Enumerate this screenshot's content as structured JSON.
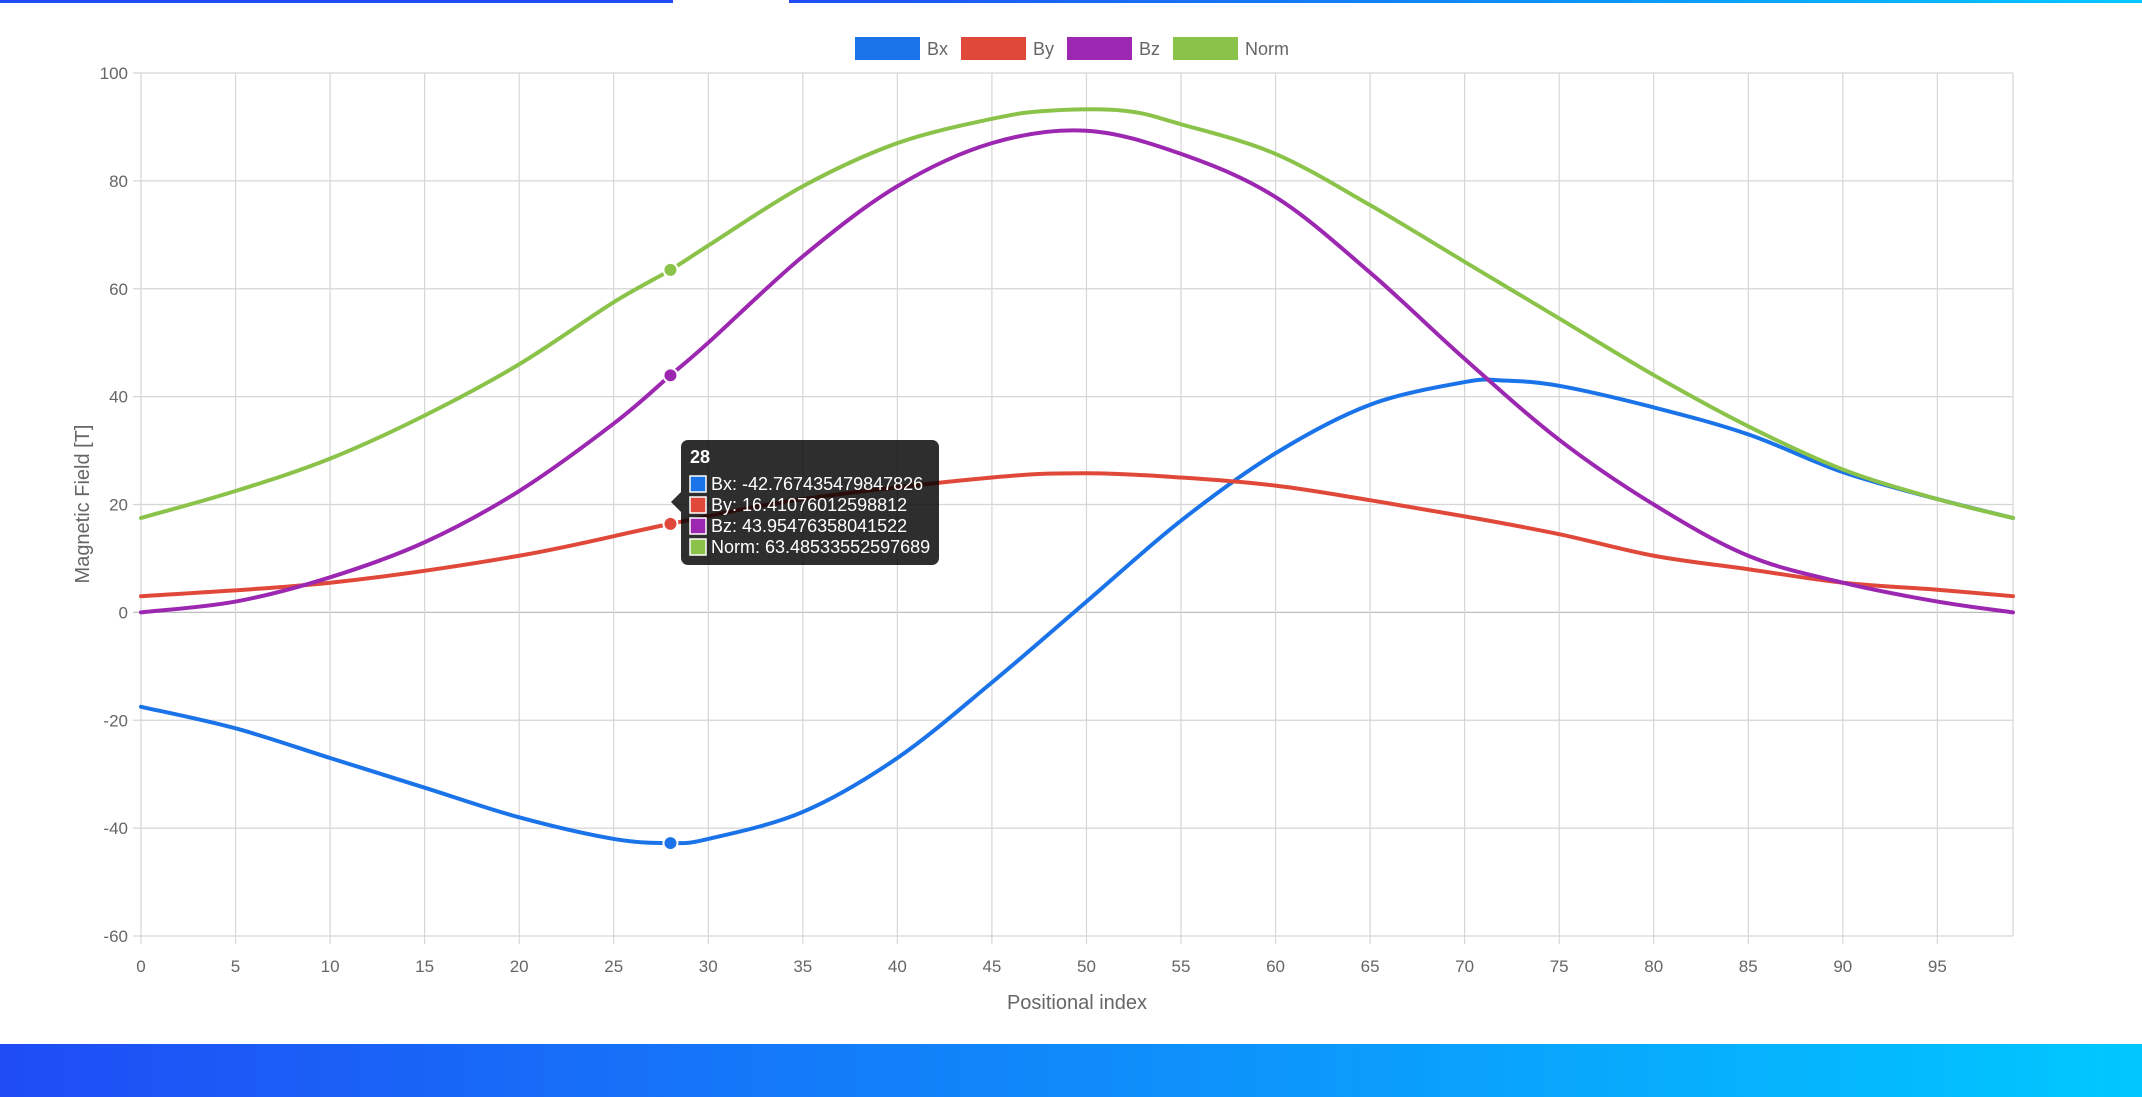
{
  "page": {
    "gradient_start": "#1f4cf5",
    "gradient_end": "#00c8ff"
  },
  "chart_data": {
    "type": "line",
    "xlabel": "Positional index",
    "ylabel": "Magnetic Field [T]",
    "xlim": [
      0,
      99
    ],
    "ylim": [
      -60,
      100
    ],
    "x_ticks": [
      0,
      5,
      10,
      15,
      20,
      25,
      30,
      35,
      40,
      45,
      50,
      55,
      60,
      65,
      70,
      75,
      80,
      85,
      90,
      95
    ],
    "y_ticks": [
      100,
      80,
      60,
      40,
      20,
      0,
      -20,
      -40,
      -60
    ],
    "grid": true,
    "legend_position": "top",
    "series": [
      {
        "name": "Bx",
        "color": "#1a73e8",
        "points": [
          [
            0,
            -17.5
          ],
          [
            5,
            -21.5
          ],
          [
            10,
            -27
          ],
          [
            15,
            -32.5
          ],
          [
            20,
            -38
          ],
          [
            25,
            -42
          ],
          [
            28,
            -42.77
          ],
          [
            30,
            -42
          ],
          [
            35,
            -37
          ],
          [
            40,
            -27
          ],
          [
            45,
            -13
          ],
          [
            50,
            2
          ],
          [
            55,
            17
          ],
          [
            60,
            29.5
          ],
          [
            65,
            38.5
          ],
          [
            70,
            42.7
          ],
          [
            72,
            43
          ],
          [
            75,
            42
          ],
          [
            80,
            38
          ],
          [
            85,
            33
          ],
          [
            90,
            26
          ],
          [
            95,
            21
          ],
          [
            99,
            17.5
          ]
        ]
      },
      {
        "name": "By",
        "color": "#e0483a",
        "points": [
          [
            0,
            3
          ],
          [
            10,
            5.5
          ],
          [
            20,
            10.5
          ],
          [
            28,
            16.41
          ],
          [
            35,
            21
          ],
          [
            45,
            25
          ],
          [
            50,
            25.8
          ],
          [
            55,
            25
          ],
          [
            60,
            23.5
          ],
          [
            65,
            20.8
          ],
          [
            70,
            17.8
          ],
          [
            75,
            14.5
          ],
          [
            80,
            10.5
          ],
          [
            85,
            8
          ],
          [
            90,
            5.5
          ],
          [
            95,
            4.2
          ],
          [
            99,
            3
          ]
        ]
      },
      {
        "name": "Bz",
        "color": "#9c27b0",
        "points": [
          [
            0,
            0
          ],
          [
            5,
            2
          ],
          [
            10,
            6.5
          ],
          [
            15,
            13
          ],
          [
            20,
            22.5
          ],
          [
            25,
            35
          ],
          [
            28,
            43.95
          ],
          [
            30,
            50
          ],
          [
            35,
            66
          ],
          [
            40,
            79
          ],
          [
            45,
            87
          ],
          [
            50,
            89.3
          ],
          [
            55,
            85
          ],
          [
            60,
            77
          ],
          [
            65,
            63
          ],
          [
            70,
            47
          ],
          [
            75,
            32
          ],
          [
            80,
            20
          ],
          [
            85,
            10.5
          ],
          [
            90,
            5.5
          ],
          [
            95,
            2
          ],
          [
            99,
            0
          ]
        ]
      },
      {
        "name": "Norm",
        "color": "#8bc34a",
        "points": [
          [
            0,
            17.5
          ],
          [
            5,
            22.5
          ],
          [
            10,
            28.5
          ],
          [
            15,
            36.5
          ],
          [
            20,
            46
          ],
          [
            25,
            57.5
          ],
          [
            28,
            63.49
          ],
          [
            30,
            68
          ],
          [
            35,
            79
          ],
          [
            40,
            87
          ],
          [
            45,
            91.5
          ],
          [
            48,
            93
          ],
          [
            52,
            93
          ],
          [
            55,
            90.5
          ],
          [
            60,
            85
          ],
          [
            65,
            75.5
          ],
          [
            70,
            65
          ],
          [
            75,
            54.5
          ],
          [
            80,
            44
          ],
          [
            85,
            34.5
          ],
          [
            90,
            26.5
          ],
          [
            95,
            21
          ],
          [
            99,
            17.5
          ]
        ]
      }
    ],
    "hover_index": 28,
    "tooltip": {
      "title": "28",
      "lines": [
        "Bx: -42.767435479847826",
        "By: 16.41076012598812",
        "Bz: 43.95476358041522",
        "Norm: 63.48533552597689"
      ]
    }
  }
}
